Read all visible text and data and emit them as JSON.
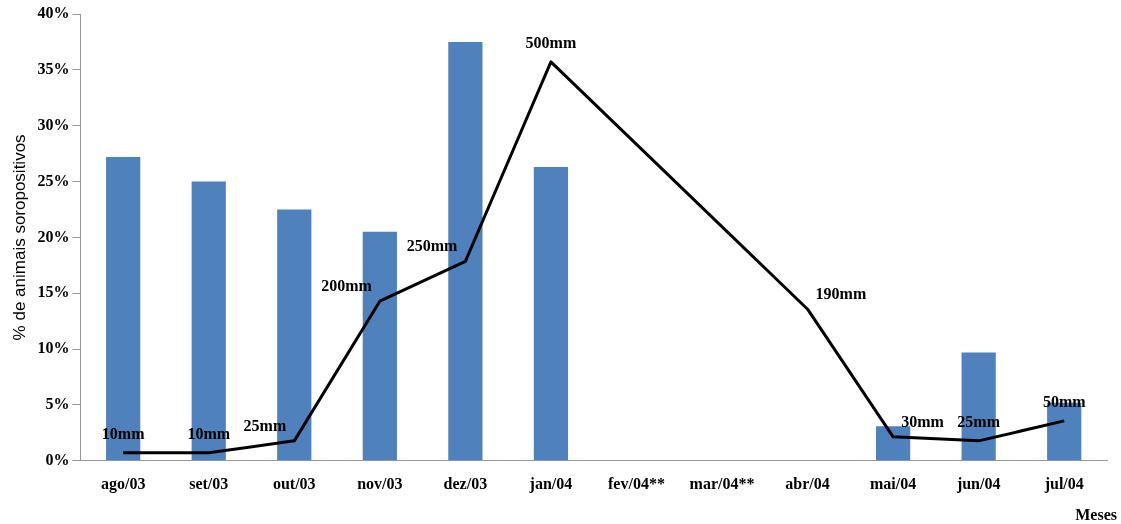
{
  "chart_data": {
    "type": "bar",
    "ylabel": "% de animais soropositivos",
    "xlabel": "Meses",
    "categories": [
      "ago/03",
      "set/03",
      "out/03",
      "nov/03",
      "dez/03",
      "jan/04",
      "fev/04**",
      "mar/04**",
      "abr/04",
      "mai/04",
      "jun/04",
      "jul/04"
    ],
    "series": [
      {
        "color": "#4f81bd",
        "values": [
          27.2,
          25.0,
          22.5,
          20.5,
          37.5,
          26.3,
          null,
          null,
          null,
          3.1,
          9.7,
          5.2
        ]
      },
      {
        "type": "line",
        "axis": "y2",
        "color": "#000000",
        "values": [
          10,
          10,
          25,
          200,
          250,
          500,
          null,
          null,
          190,
          30,
          25,
          50
        ],
        "value_labels": [
          "10mm",
          "10mm",
          "25mm",
          "200mm",
          "250mm",
          "500mm",
          null,
          null,
          "190mm",
          "30mm",
          "25mm",
          "50mm"
        ]
      }
    ],
    "ylim": [
      0,
      40
    ],
    "yticks": [
      {
        "value": 0,
        "label": "0%"
      },
      {
        "value": 5,
        "label": "5%"
      },
      {
        "value": 10,
        "label": "10%"
      },
      {
        "value": 15,
        "label": "15%"
      },
      {
        "value": 20,
        "label": "20%"
      },
      {
        "value": 25,
        "label": "25%"
      },
      {
        "value": 30,
        "label": "30%"
      },
      {
        "value": 35,
        "label": "35%"
      },
      {
        "value": 40,
        "label": "40%"
      }
    ],
    "y2lim": [
      0,
      560
    ],
    "grid": false,
    "legend": false,
    "marker": "none",
    "line_style": "solid"
  }
}
